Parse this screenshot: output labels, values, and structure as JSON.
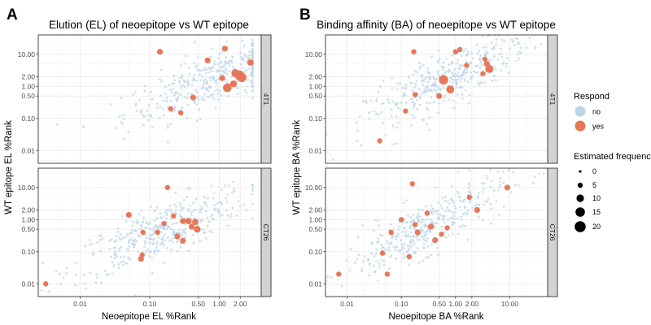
{
  "colors": {
    "no": "#bcd5ea",
    "yes": "#e8775a",
    "strip": "#d3d3d3",
    "grid": "#ebebeb",
    "panel_border": "#333333"
  },
  "legend": {
    "respond_title": "Respond",
    "respond_items": [
      "no",
      "yes"
    ],
    "size_title": "Estimated frequenc",
    "size_items": [
      "0",
      "5",
      "10",
      "15",
      "20"
    ]
  },
  "chart_data": [
    {
      "type": "scatter",
      "panel_letter": "A",
      "title": "Elution (EL) of neoepitope vs WT epitope",
      "xlabel": "Neoepitope EL %Rank",
      "ylabel": "WT epitope EL %Rank",
      "log_x": true,
      "log_y": true,
      "xlim": [
        0.0025,
        4.0
      ],
      "ylim": [
        0.004,
        40
      ],
      "x_ticks": [
        "0.01",
        "0.10",
        "0.50",
        "1.00",
        "2.00"
      ],
      "facets": [
        {
          "strip": "4T1",
          "y_ticks": [
            "0.01",
            "0.10",
            "0.50",
            "1.00",
            "2.00",
            "10.00"
          ],
          "yes_points": [
            {
              "x": 0.14,
              "y": 12,
              "freq": 3
            },
            {
              "x": 1.2,
              "y": 15,
              "freq": 3
            },
            {
              "x": 0.68,
              "y": 6.5,
              "freq": 3
            },
            {
              "x": 2.8,
              "y": 5.5,
              "freq": 4
            },
            {
              "x": 1.1,
              "y": 1.8,
              "freq": 3
            },
            {
              "x": 1.7,
              "y": 2.6,
              "freq": 8
            },
            {
              "x": 1.95,
              "y": 2.2,
              "freq": 14
            },
            {
              "x": 2.1,
              "y": 1.9,
              "freq": 12
            },
            {
              "x": 1.3,
              "y": 0.9,
              "freq": 10
            },
            {
              "x": 1.6,
              "y": 1.2,
              "freq": 5
            },
            {
              "x": 0.42,
              "y": 0.45,
              "freq": 3
            },
            {
              "x": 0.2,
              "y": 0.2,
              "freq": 2
            },
            {
              "x": 0.28,
              "y": 0.15,
              "freq": 2
            }
          ]
        },
        {
          "strip": "CT26",
          "y_ticks": [
            "0.01",
            "0.10",
            "0.50",
            "1.00",
            "2.00",
            "10.00"
          ],
          "yes_points": [
            {
              "x": 0.0032,
              "y": 0.01,
              "freq": 2
            },
            {
              "x": 0.05,
              "y": 1.4,
              "freq": 3
            },
            {
              "x": 0.18,
              "y": 10,
              "freq": 2
            },
            {
              "x": 0.08,
              "y": 0.4,
              "freq": 2
            },
            {
              "x": 0.075,
              "y": 0.06,
              "freq": 3
            },
            {
              "x": 0.078,
              "y": 0.08,
              "freq": 2
            },
            {
              "x": 0.13,
              "y": 0.4,
              "freq": 2
            },
            {
              "x": 0.16,
              "y": 0.75,
              "freq": 2
            },
            {
              "x": 0.22,
              "y": 1.3,
              "freq": 2
            },
            {
              "x": 0.3,
              "y": 0.9,
              "freq": 3
            },
            {
              "x": 0.36,
              "y": 0.9,
              "freq": 4
            },
            {
              "x": 0.45,
              "y": 0.85,
              "freq": 4
            },
            {
              "x": 0.4,
              "y": 0.6,
              "freq": 3
            },
            {
              "x": 0.48,
              "y": 0.5,
              "freq": 5
            },
            {
              "x": 0.25,
              "y": 0.3,
              "freq": 3
            },
            {
              "x": 0.3,
              "y": 0.22,
              "freq": 3
            }
          ]
        }
      ]
    },
    {
      "type": "scatter",
      "panel_letter": "B",
      "title": "Binding affinity (BA) of neoepitope vs WT epitope",
      "xlabel": "Neoepitope BA %Rank",
      "ylabel": "WT epitope BA %Rank",
      "log_x": true,
      "log_y": true,
      "xlim": [
        0.004,
        50
      ],
      "ylim": [
        0.004,
        40
      ],
      "x_ticks": [
        "0.01",
        "0.10",
        "0.50",
        "1.00",
        "2.00",
        "10.00"
      ],
      "facets": [
        {
          "strip": "4T1",
          "y_ticks": [
            "0.01",
            "0.10",
            "0.50",
            "1.00",
            "2.00",
            "10.00"
          ],
          "yes_points": [
            {
              "x": 0.17,
              "y": 12,
              "freq": 2
            },
            {
              "x": 1.0,
              "y": 12,
              "freq": 2
            },
            {
              "x": 1.2,
              "y": 14,
              "freq": 2
            },
            {
              "x": 1.6,
              "y": 4.5,
              "freq": 2
            },
            {
              "x": 3.5,
              "y": 7,
              "freq": 2
            },
            {
              "x": 3.8,
              "y": 5,
              "freq": 3
            },
            {
              "x": 4.2,
              "y": 3.5,
              "freq": 8
            },
            {
              "x": 3.2,
              "y": 2.5,
              "freq": 2
            },
            {
              "x": 0.6,
              "y": 1.6,
              "freq": 12
            },
            {
              "x": 0.8,
              "y": 0.8,
              "freq": 8
            },
            {
              "x": 0.5,
              "y": 0.5,
              "freq": 3
            },
            {
              "x": 0.18,
              "y": 0.55,
              "freq": 2
            },
            {
              "x": 0.12,
              "y": 0.17,
              "freq": 2
            },
            {
              "x": 0.04,
              "y": 0.02,
              "freq": 2
            }
          ]
        },
        {
          "strip": "CT26",
          "y_ticks": [
            "0.01",
            "0.10",
            "0.50",
            "1.00",
            "2.00",
            "10.00"
          ],
          "yes_points": [
            {
              "x": 0.007,
              "y": 0.02,
              "freq": 2
            },
            {
              "x": 0.045,
              "y": 0.09,
              "freq": 2
            },
            {
              "x": 0.055,
              "y": 0.02,
              "freq": 2
            },
            {
              "x": 0.065,
              "y": 0.4,
              "freq": 2
            },
            {
              "x": 0.1,
              "y": 1.0,
              "freq": 2
            },
            {
              "x": 0.14,
              "y": 0.07,
              "freq": 2
            },
            {
              "x": 0.16,
              "y": 13,
              "freq": 2
            },
            {
              "x": 0.18,
              "y": 0.7,
              "freq": 2
            },
            {
              "x": 0.2,
              "y": 0.4,
              "freq": 3
            },
            {
              "x": 0.3,
              "y": 1.6,
              "freq": 2
            },
            {
              "x": 0.35,
              "y": 0.6,
              "freq": 3
            },
            {
              "x": 0.42,
              "y": 0.23,
              "freq": 3
            },
            {
              "x": 0.55,
              "y": 0.35,
              "freq": 2
            },
            {
              "x": 0.7,
              "y": 0.55,
              "freq": 2
            },
            {
              "x": 1.8,
              "y": 5,
              "freq": 2
            },
            {
              "x": 2.5,
              "y": 2,
              "freq": 3
            },
            {
              "x": 9,
              "y": 10,
              "freq": 3
            }
          ]
        }
      ]
    }
  ]
}
